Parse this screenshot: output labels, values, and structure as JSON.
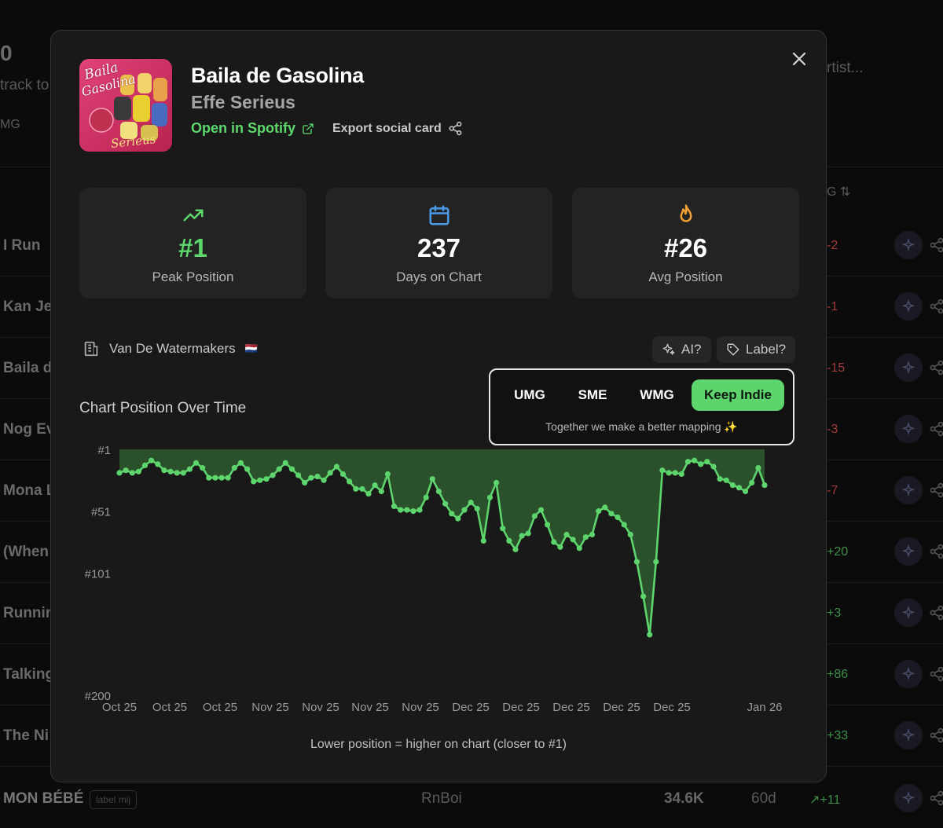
{
  "background": {
    "count_fragment": "0",
    "subtitle_fragment": "track to",
    "filter_fragment": "MG",
    "search_fragment": "rtist...",
    "sort_fragment": "G",
    "rows": [
      {
        "title": "I Run",
        "change": "-2",
        "color": "#a33a3a"
      },
      {
        "title": "Kan Je",
        "change": "-1",
        "color": "#a33a3a"
      },
      {
        "title": "Baila d",
        "change": "-15",
        "color": "#a33a3a"
      },
      {
        "title": "Nog Ev",
        "change": "-3",
        "color": "#a33a3a"
      },
      {
        "title": "Mona L",
        "change": "-7",
        "color": "#a33a3a"
      },
      {
        "title": "(When",
        "change": "+20",
        "color": "#3f8f4a"
      },
      {
        "title": "Runnin",
        "change": "+3",
        "color": "#3f8f4a"
      },
      {
        "title": "Talking",
        "change": "+86",
        "color": "#3f8f4a"
      },
      {
        "title": "The Ni",
        "change": "+33",
        "color": "#3f8f4a"
      }
    ],
    "last_row": {
      "title": "MON BÉBÉ",
      "badge": "label mij",
      "artist": "RnBoi",
      "streams": "34.6K",
      "days": "60d",
      "change": "+11"
    }
  },
  "track": {
    "title": "Baila de Gasolina",
    "artist": "Effe Serieus",
    "spotify_label": "Open in Spotify",
    "export_label": "Export social card",
    "cover_text_1": "Baila",
    "cover_text_2": "Gasolina",
    "cover_text_3": "Serieus"
  },
  "stats": [
    {
      "value": "#1",
      "label": "Peak Position",
      "icon": "trending-up-icon",
      "color": "#5dd86c"
    },
    {
      "value": "237",
      "label": "Days on Chart",
      "icon": "calendar-icon",
      "color": "#ffffff"
    },
    {
      "value": "#26",
      "label": "Avg Position",
      "icon": "flame-icon",
      "color": "#ffffff"
    }
  ],
  "label_info": {
    "name": "Van De Watermakers",
    "flag": "🇳🇱"
  },
  "actions": {
    "ai_label": "AI?",
    "label_label": "Label?"
  },
  "mapping": {
    "options": [
      "UMG",
      "SME",
      "WMG",
      "Keep Indie"
    ],
    "active": "Keep Indie",
    "note": "Together we make a better mapping ✨"
  },
  "chart_title": "Chart Position Over Time",
  "chart_note": "Lower position = higher on chart (closer to #1)",
  "chart_data": {
    "type": "area",
    "ylabel": "",
    "xlabel": "",
    "y_inverted": true,
    "ylim": [
      1,
      200
    ],
    "y_ticks": [
      "#1",
      "#51",
      "#101",
      "#200"
    ],
    "y_tick_values": [
      1,
      51,
      101,
      200
    ],
    "x_ticks": [
      "Oct 25",
      "Oct 25",
      "Oct 25",
      "Nov 25",
      "Nov 25",
      "Nov 25",
      "Nov 25",
      "Dec 25",
      "Dec 25",
      "Dec 25",
      "Dec 25",
      "Dec 25",
      "Jan 26"
    ],
    "colors": {
      "line": "#5ed46d",
      "fill": "#2e5a30"
    },
    "series": [
      {
        "values": [
          20,
          18,
          20,
          19,
          14,
          10,
          13,
          18,
          19,
          20,
          20,
          17,
          12,
          16,
          24,
          24,
          24,
          24,
          16,
          12,
          17,
          27,
          26,
          25,
          22,
          17,
          12,
          17,
          22,
          28,
          24,
          23,
          26,
          20,
          15,
          21,
          27,
          33,
          33,
          37,
          30,
          35,
          21,
          47,
          50,
          50,
          51,
          50,
          40,
          25,
          35,
          45,
          53,
          57,
          50,
          44,
          49,
          75,
          40,
          28,
          65,
          75,
          82,
          71,
          69,
          55,
          50,
          62,
          76,
          80,
          70,
          74,
          81,
          72,
          70,
          51,
          48,
          53,
          56,
          62,
          70,
          92,
          120,
          151,
          92,
          18,
          20,
          20,
          21,
          11,
          10,
          13,
          11,
          15,
          25,
          26,
          30,
          32,
          35,
          28,
          16,
          30
        ]
      }
    ]
  }
}
